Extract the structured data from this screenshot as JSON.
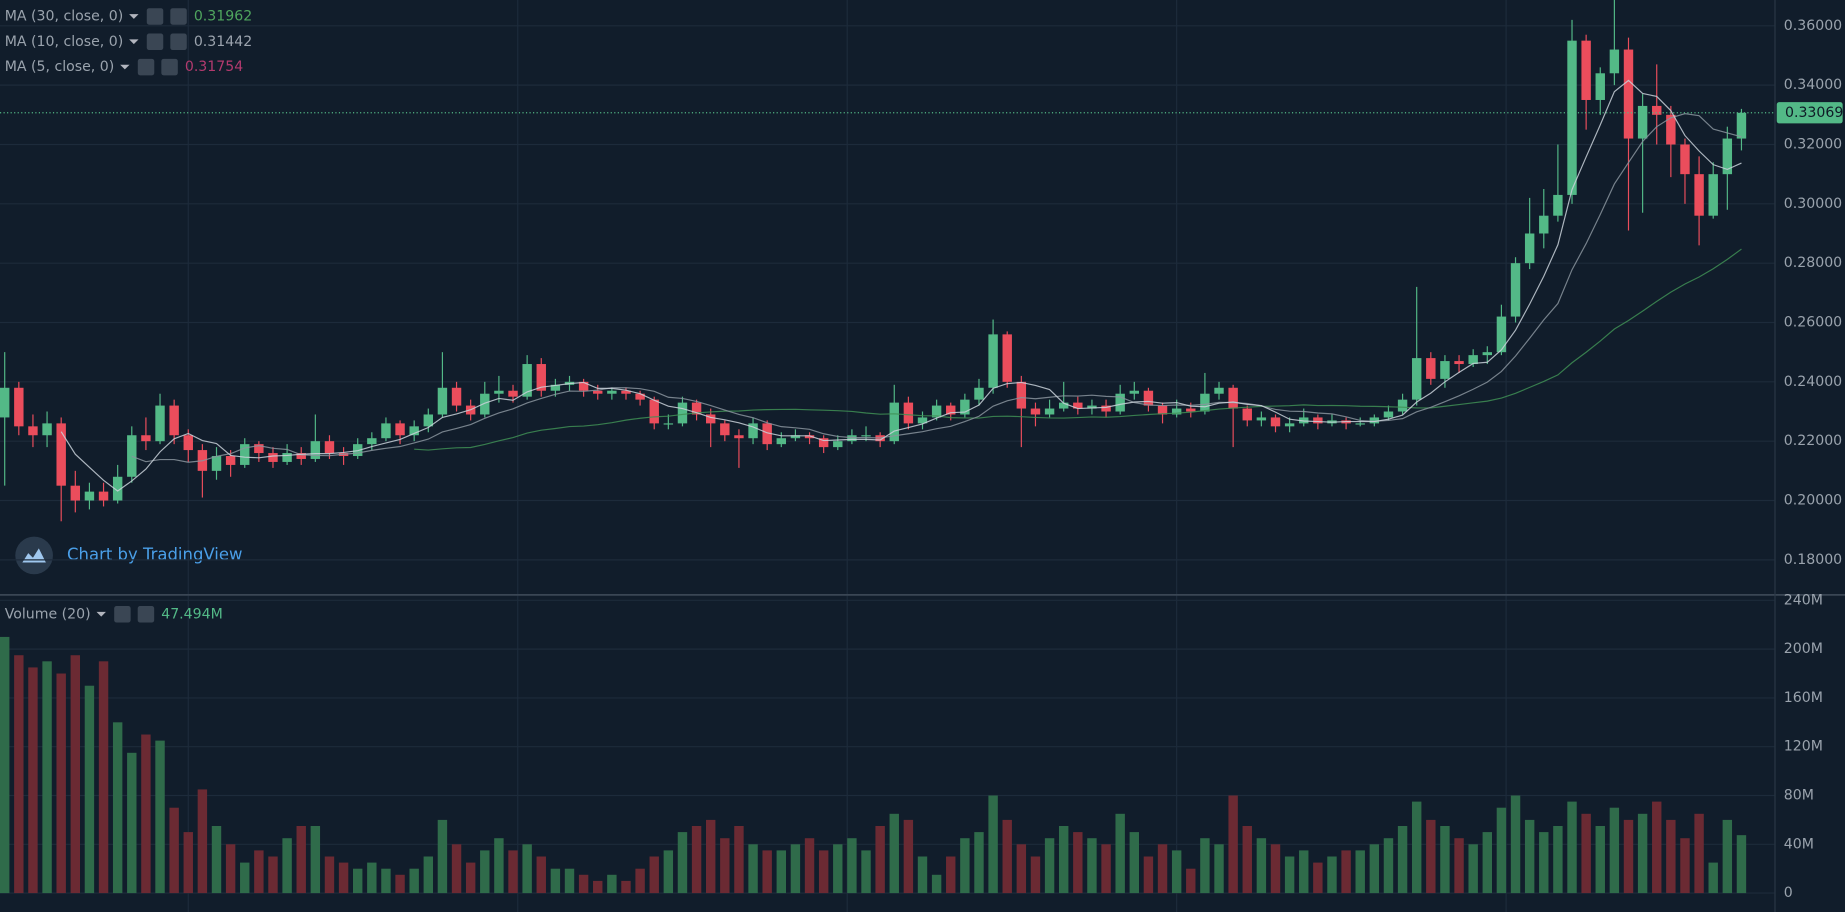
{
  "chart_data": [
    {
      "type": "candlestick",
      "up_color": "#53b987",
      "down_color": "#eb4d5c",
      "ylim": [
        0.1684,
        0.3687
      ],
      "yticks": [
        {
          "value": 0.18,
          "label": "0.18000"
        },
        {
          "value": 0.2,
          "label": "0.20000"
        },
        {
          "value": 0.22,
          "label": "0.22000"
        },
        {
          "value": 0.24,
          "label": "0.24000"
        },
        {
          "value": 0.26,
          "label": "0.26000"
        },
        {
          "value": 0.28,
          "label": "0.28000"
        },
        {
          "value": 0.3,
          "label": "0.30000"
        },
        {
          "value": 0.32,
          "label": "0.32000"
        },
        {
          "value": 0.34,
          "label": "0.34000"
        },
        {
          "value": 0.36,
          "label": "0.36000"
        }
      ],
      "grid": true,
      "last_price": 0.33069,
      "watermark": "Chart by TradingView",
      "indicators": [
        {
          "label": "MA (30, close, 0)",
          "period": 30,
          "value": 0.31962,
          "color": "#4fa55e",
          "line_color": "#3f8f55"
        },
        {
          "label": "MA (10, close, 0)",
          "period": 10,
          "value": 0.31442,
          "color": "#9ba3ad",
          "line_color": "#8a949e"
        },
        {
          "label": "MA (5, close, 0)",
          "period": 5,
          "value": 0.31754,
          "color": "#b23a6e",
          "line_color": "#c9d1d9"
        }
      ],
      "ohlc": [
        [
          0.228,
          0.25,
          0.205,
          0.238
        ],
        [
          0.238,
          0.24,
          0.222,
          0.225
        ],
        [
          0.225,
          0.229,
          0.218,
          0.222
        ],
        [
          0.222,
          0.23,
          0.218,
          0.226
        ],
        [
          0.226,
          0.228,
          0.193,
          0.205
        ],
        [
          0.205,
          0.21,
          0.196,
          0.2
        ],
        [
          0.2,
          0.206,
          0.197,
          0.203
        ],
        [
          0.203,
          0.206,
          0.198,
          0.2
        ],
        [
          0.2,
          0.212,
          0.199,
          0.208
        ],
        [
          0.208,
          0.225,
          0.206,
          0.222
        ],
        [
          0.222,
          0.228,
          0.217,
          0.22
        ],
        [
          0.22,
          0.236,
          0.219,
          0.232
        ],
        [
          0.232,
          0.234,
          0.219,
          0.222
        ],
        [
          0.222,
          0.224,
          0.213,
          0.217
        ],
        [
          0.217,
          0.219,
          0.201,
          0.21
        ],
        [
          0.21,
          0.218,
          0.207,
          0.215
        ],
        [
          0.215,
          0.217,
          0.208,
          0.212
        ],
        [
          0.212,
          0.221,
          0.211,
          0.219
        ],
        [
          0.219,
          0.22,
          0.213,
          0.216
        ],
        [
          0.216,
          0.218,
          0.211,
          0.213
        ],
        [
          0.213,
          0.219,
          0.212,
          0.216
        ],
        [
          0.216,
          0.218,
          0.212,
          0.214
        ],
        [
          0.214,
          0.229,
          0.213,
          0.22
        ],
        [
          0.22,
          0.222,
          0.214,
          0.216
        ],
        [
          0.216,
          0.218,
          0.212,
          0.215
        ],
        [
          0.215,
          0.221,
          0.214,
          0.219
        ],
        [
          0.219,
          0.223,
          0.217,
          0.221
        ],
        [
          0.221,
          0.228,
          0.22,
          0.226
        ],
        [
          0.226,
          0.227,
          0.219,
          0.222
        ],
        [
          0.222,
          0.227,
          0.22,
          0.225
        ],
        [
          0.225,
          0.231,
          0.223,
          0.229
        ],
        [
          0.229,
          0.25,
          0.228,
          0.238
        ],
        [
          0.238,
          0.24,
          0.23,
          0.232
        ],
        [
          0.232,
          0.234,
          0.227,
          0.229
        ],
        [
          0.229,
          0.24,
          0.228,
          0.236
        ],
        [
          0.236,
          0.242,
          0.233,
          0.237
        ],
        [
          0.237,
          0.239,
          0.233,
          0.235
        ],
        [
          0.235,
          0.249,
          0.234,
          0.246
        ],
        [
          0.246,
          0.248,
          0.235,
          0.237
        ],
        [
          0.237,
          0.241,
          0.235,
          0.239
        ],
        [
          0.239,
          0.242,
          0.237,
          0.24
        ],
        [
          0.24,
          0.241,
          0.235,
          0.237
        ],
        [
          0.237,
          0.239,
          0.234,
          0.236
        ],
        [
          0.236,
          0.238,
          0.234,
          0.237
        ],
        [
          0.237,
          0.238,
          0.234,
          0.236
        ],
        [
          0.236,
          0.237,
          0.232,
          0.234
        ],
        [
          0.234,
          0.235,
          0.224,
          0.226
        ],
        [
          0.226,
          0.229,
          0.224,
          0.226
        ],
        [
          0.226,
          0.235,
          0.225,
          0.233
        ],
        [
          0.233,
          0.234,
          0.227,
          0.229
        ],
        [
          0.229,
          0.231,
          0.218,
          0.226
        ],
        [
          0.226,
          0.227,
          0.22,
          0.222
        ],
        [
          0.222,
          0.224,
          0.211,
          0.221
        ],
        [
          0.221,
          0.228,
          0.219,
          0.226
        ],
        [
          0.226,
          0.227,
          0.217,
          0.219
        ],
        [
          0.219,
          0.223,
          0.218,
          0.221
        ],
        [
          0.221,
          0.224,
          0.22,
          0.222
        ],
        [
          0.222,
          0.223,
          0.219,
          0.221
        ],
        [
          0.221,
          0.222,
          0.216,
          0.218
        ],
        [
          0.218,
          0.222,
          0.217,
          0.22
        ],
        [
          0.22,
          0.224,
          0.219,
          0.222
        ],
        [
          0.222,
          0.225,
          0.22,
          0.222
        ],
        [
          0.222,
          0.223,
          0.218,
          0.22
        ],
        [
          0.22,
          0.239,
          0.219,
          0.233
        ],
        [
          0.233,
          0.235,
          0.224,
          0.226
        ],
        [
          0.226,
          0.23,
          0.224,
          0.228
        ],
        [
          0.228,
          0.234,
          0.227,
          0.232
        ],
        [
          0.232,
          0.233,
          0.227,
          0.229
        ],
        [
          0.229,
          0.236,
          0.228,
          0.234
        ],
        [
          0.234,
          0.241,
          0.232,
          0.238
        ],
        [
          0.238,
          0.261,
          0.236,
          0.256
        ],
        [
          0.256,
          0.257,
          0.238,
          0.24
        ],
        [
          0.24,
          0.242,
          0.218,
          0.231
        ],
        [
          0.231,
          0.233,
          0.225,
          0.229
        ],
        [
          0.229,
          0.234,
          0.228,
          0.231
        ],
        [
          0.231,
          0.24,
          0.23,
          0.233
        ],
        [
          0.233,
          0.235,
          0.229,
          0.231
        ],
        [
          0.231,
          0.234,
          0.229,
          0.232
        ],
        [
          0.232,
          0.234,
          0.228,
          0.23
        ],
        [
          0.23,
          0.239,
          0.229,
          0.236
        ],
        [
          0.236,
          0.24,
          0.234,
          0.237
        ],
        [
          0.237,
          0.238,
          0.23,
          0.232
        ],
        [
          0.232,
          0.233,
          0.226,
          0.229
        ],
        [
          0.229,
          0.234,
          0.228,
          0.231
        ],
        [
          0.231,
          0.233,
          0.228,
          0.23
        ],
        [
          0.23,
          0.243,
          0.229,
          0.236
        ],
        [
          0.236,
          0.24,
          0.234,
          0.238
        ],
        [
          0.238,
          0.239,
          0.218,
          0.231
        ],
        [
          0.231,
          0.232,
          0.225,
          0.227
        ],
        [
          0.227,
          0.23,
          0.225,
          0.228
        ],
        [
          0.228,
          0.229,
          0.223,
          0.225
        ],
        [
          0.225,
          0.228,
          0.223,
          0.226
        ],
        [
          0.226,
          0.231,
          0.225,
          0.228
        ],
        [
          0.228,
          0.229,
          0.224,
          0.226
        ],
        [
          0.226,
          0.229,
          0.225,
          0.227
        ],
        [
          0.227,
          0.228,
          0.224,
          0.226
        ],
        [
          0.226,
          0.228,
          0.225,
          0.226
        ],
        [
          0.226,
          0.229,
          0.225,
          0.228
        ],
        [
          0.228,
          0.232,
          0.227,
          0.23
        ],
        [
          0.23,
          0.236,
          0.229,
          0.234
        ],
        [
          0.234,
          0.272,
          0.232,
          0.248
        ],
        [
          0.248,
          0.25,
          0.239,
          0.241
        ],
        [
          0.241,
          0.249,
          0.238,
          0.247
        ],
        [
          0.247,
          0.249,
          0.243,
          0.246
        ],
        [
          0.246,
          0.251,
          0.245,
          0.249
        ],
        [
          0.249,
          0.252,
          0.246,
          0.25
        ],
        [
          0.25,
          0.266,
          0.249,
          0.262
        ],
        [
          0.262,
          0.282,
          0.26,
          0.28
        ],
        [
          0.28,
          0.302,
          0.278,
          0.29
        ],
        [
          0.29,
          0.305,
          0.285,
          0.296
        ],
        [
          0.296,
          0.32,
          0.294,
          0.303
        ],
        [
          0.303,
          0.362,
          0.3,
          0.355
        ],
        [
          0.355,
          0.357,
          0.325,
          0.335
        ],
        [
          0.335,
          0.346,
          0.33,
          0.344
        ],
        [
          0.344,
          0.369,
          0.34,
          0.352
        ],
        [
          0.352,
          0.356,
          0.291,
          0.322
        ],
        [
          0.322,
          0.337,
          0.297,
          0.333
        ],
        [
          0.333,
          0.347,
          0.32,
          0.33
        ],
        [
          0.33,
          0.333,
          0.309,
          0.32
        ],
        [
          0.32,
          0.322,
          0.3,
          0.31
        ],
        [
          0.31,
          0.316,
          0.286,
          0.296
        ],
        [
          0.296,
          0.314,
          0.295,
          0.31
        ],
        [
          0.31,
          0.326,
          0.298,
          0.322
        ],
        [
          0.322,
          0.332,
          0.318,
          0.33069
        ]
      ]
    },
    {
      "type": "volume",
      "label": "Volume (20)",
      "current": {
        "value": 47.494,
        "label": "47.494M"
      },
      "up_color": "#2f6b4a",
      "down_color": "#6b2a33",
      "ylim": [
        -15.5,
        244
      ],
      "yticks": [
        0,
        {
          "value": 40,
          "label": "40M"
        },
        {
          "value": 80,
          "label": "80M"
        },
        {
          "value": 120,
          "label": "120M"
        },
        {
          "value": 160,
          "label": "160M"
        },
        {
          "value": 200,
          "label": "200M"
        },
        {
          "value": 240,
          "label": "240M"
        }
      ],
      "grid": true,
      "values": [
        210,
        195,
        185,
        190,
        180,
        195,
        170,
        190,
        140,
        115,
        130,
        125,
        70,
        50,
        85,
        55,
        40,
        25,
        35,
        30,
        45,
        55,
        55,
        30,
        25,
        20,
        25,
        20,
        15,
        20,
        30,
        60,
        40,
        25,
        35,
        45,
        35,
        40,
        30,
        20,
        20,
        15,
        10,
        15,
        10,
        20,
        30,
        35,
        50,
        55,
        60,
        45,
        55,
        40,
        35,
        35,
        40,
        45,
        35,
        40,
        45,
        35,
        55,
        65,
        60,
        30,
        15,
        30,
        45,
        50,
        80,
        60,
        40,
        30,
        45,
        55,
        50,
        45,
        40,
        65,
        50,
        30,
        40,
        35,
        20,
        45,
        40,
        80,
        55,
        45,
        40,
        30,
        35,
        25,
        30,
        35,
        35,
        40,
        45,
        55,
        75,
        60,
        55,
        45,
        40,
        50,
        70,
        80,
        60,
        50,
        55,
        75,
        65,
        55,
        70,
        60,
        65,
        75,
        60,
        45,
        65,
        25,
        60,
        47.494
      ]
    }
  ]
}
